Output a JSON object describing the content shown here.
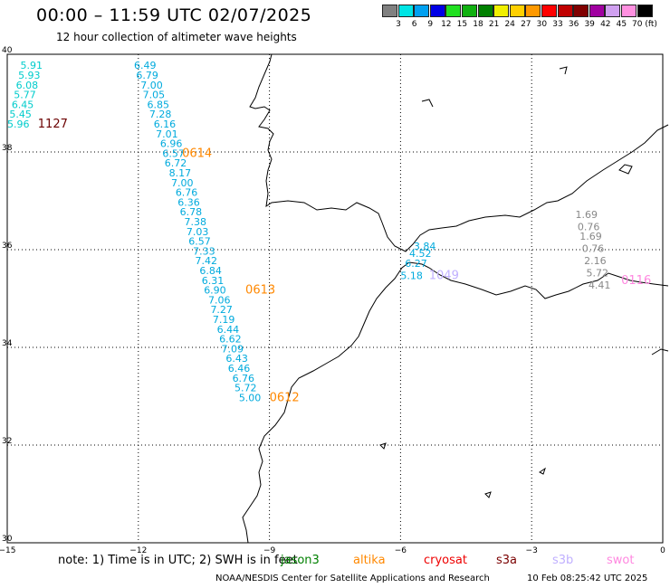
{
  "header": {
    "title": "00:00 – 11:59 UTC 02/07/2025",
    "subtitle": "12 hour collection of altimeter wave heights"
  },
  "colorbar": {
    "labels": [
      "3",
      "6",
      "9",
      "12",
      "15",
      "18",
      "21",
      "24",
      "27",
      "30",
      "33",
      "36",
      "39",
      "42",
      "45",
      "70 (ft)"
    ],
    "colors": [
      "#808080",
      "#00e5e5",
      "#00a0f0",
      "#0000e6",
      "#20e020",
      "#10b010",
      "#008000",
      "#f0f000",
      "#ffd000",
      "#ff9900",
      "#ff0000",
      "#c00000",
      "#800000",
      "#a000a0",
      "#d0a0f0",
      "#ff90e0",
      "#000000"
    ]
  },
  "map": {
    "lon_ticks": [
      "−15",
      "−12",
      "−9",
      "−6",
      "−3",
      "0"
    ],
    "lat_ticks": [
      "40",
      "38",
      "36",
      "34",
      "32",
      "30"
    ],
    "tracks": [
      {
        "id": "1127",
        "color": "#00cccc",
        "label_color": "#6b0000",
        "labels": [
          "5.91",
          "5.93",
          "6.08",
          "5.77",
          "6.45",
          "5.45",
          "5.96"
        ],
        "lons": [
          -14.7,
          -14.75,
          -14.8,
          -14.85,
          -14.9,
          -14.95,
          -15.0
        ],
        "lats": [
          39.7,
          39.5,
          39.3,
          39.1,
          38.9,
          38.7,
          38.5
        ]
      },
      {
        "id": "0614",
        "color": "#00aadd",
        "label_color": "#ff8800",
        "labels": [
          "6.49",
          "6.79",
          "7.00",
          "7.05",
          "6.85",
          "7.28",
          "6.16",
          "7.01",
          "6.96",
          "6.57",
          "6.72",
          "8.17",
          "7.00",
          "6.76",
          "6.36",
          "6.78",
          "7.38",
          "7.03",
          "6.57",
          "7.33",
          "7.42",
          "6.84",
          "6.31",
          "6.90",
          "7.06",
          "7.27",
          "7.19",
          "6.44",
          "6.62",
          "7.09",
          "6.43",
          "6.46",
          "6.76",
          "5.72",
          "5.00"
        ],
        "lons": [
          -12.1,
          -12.05,
          -11.95,
          -11.9,
          -11.8,
          -11.75,
          -11.65,
          -11.6,
          -11.5,
          -11.45,
          -11.4,
          -11.3,
          -11.25,
          -11.15,
          -11.1,
          -11.05,
          -10.95,
          -10.9,
          -10.85,
          -10.75,
          -10.7,
          -10.6,
          -10.55,
          -10.5,
          -10.4,
          -10.35,
          -10.3,
          -10.2,
          -10.15,
          -10.1,
          -10.0,
          -9.95,
          -9.85,
          -9.8,
          -9.7
        ],
        "lats": [
          39.7,
          39.5,
          39.3,
          39.1,
          38.9,
          38.7,
          38.5,
          38.3,
          38.1,
          37.9,
          37.7,
          37.5,
          37.3,
          37.1,
          36.9,
          36.7,
          36.5,
          36.3,
          36.1,
          35.9,
          35.7,
          35.5,
          35.3,
          35.1,
          34.9,
          34.7,
          34.5,
          34.3,
          34.1,
          33.9,
          33.7,
          33.5,
          33.3,
          33.1,
          32.9
        ]
      },
      {
        "id": "1049",
        "color": "#00aadd",
        "label_color": "#c0b0ff",
        "labels": [
          "3.84",
          "4.52",
          "6.27",
          "5.18"
        ],
        "lons": [
          -5.7,
          -5.8,
          -5.9,
          -6.0
        ],
        "lats": [
          36.0,
          35.85,
          35.65,
          35.4
        ]
      },
      {
        "id": "0116",
        "color": "#888888",
        "label_color": "#ff88e0",
        "labels": [
          "1.69",
          "0.76",
          "1.69",
          "0.76",
          "2.16",
          "5.72",
          "4.41"
        ],
        "lons": [
          -2.0,
          -1.95,
          -1.9,
          -1.85,
          -1.8,
          -1.75,
          -1.7
        ],
        "lats": [
          36.65,
          36.4,
          36.2,
          35.95,
          35.7,
          35.45,
          35.2
        ]
      }
    ],
    "track_labels": [
      {
        "text": "1127",
        "color": "#6b0000",
        "lon": -14.3,
        "lat": 38.5
      },
      {
        "text": "0614",
        "color": "#ff8800",
        "lon": -11.0,
        "lat": 37.9
      },
      {
        "text": "0613",
        "color": "#ff8800",
        "lon": -9.55,
        "lat": 35.1
      },
      {
        "text": "0612",
        "color": "#ff8800",
        "lon": -9.0,
        "lat": 32.9
      },
      {
        "text": "1049",
        "color": "#c0b0ff",
        "lon": -5.35,
        "lat": 35.4
      },
      {
        "text": "0116",
        "color": "#ff88e0",
        "lon": -0.95,
        "lat": 35.3
      }
    ]
  },
  "footer": {
    "note": "note:  1) Time is in UTC;  2) SWH is in feet",
    "satellites": [
      {
        "name": "jason3",
        "color": "#008000"
      },
      {
        "name": "altika",
        "color": "#ff8800"
      },
      {
        "name": "cryosat",
        "color": "#ee0000"
      },
      {
        "name": "s3a",
        "color": "#7a0000"
      },
      {
        "name": "s3b",
        "color": "#c0b0ff"
      },
      {
        "name": "swot",
        "color": "#ff88e0"
      }
    ],
    "credit": "NOAA/NESDIS Center for Satellite Applications and Research",
    "timestamp": "10 Feb 08:25:42 UTC 2025"
  }
}
